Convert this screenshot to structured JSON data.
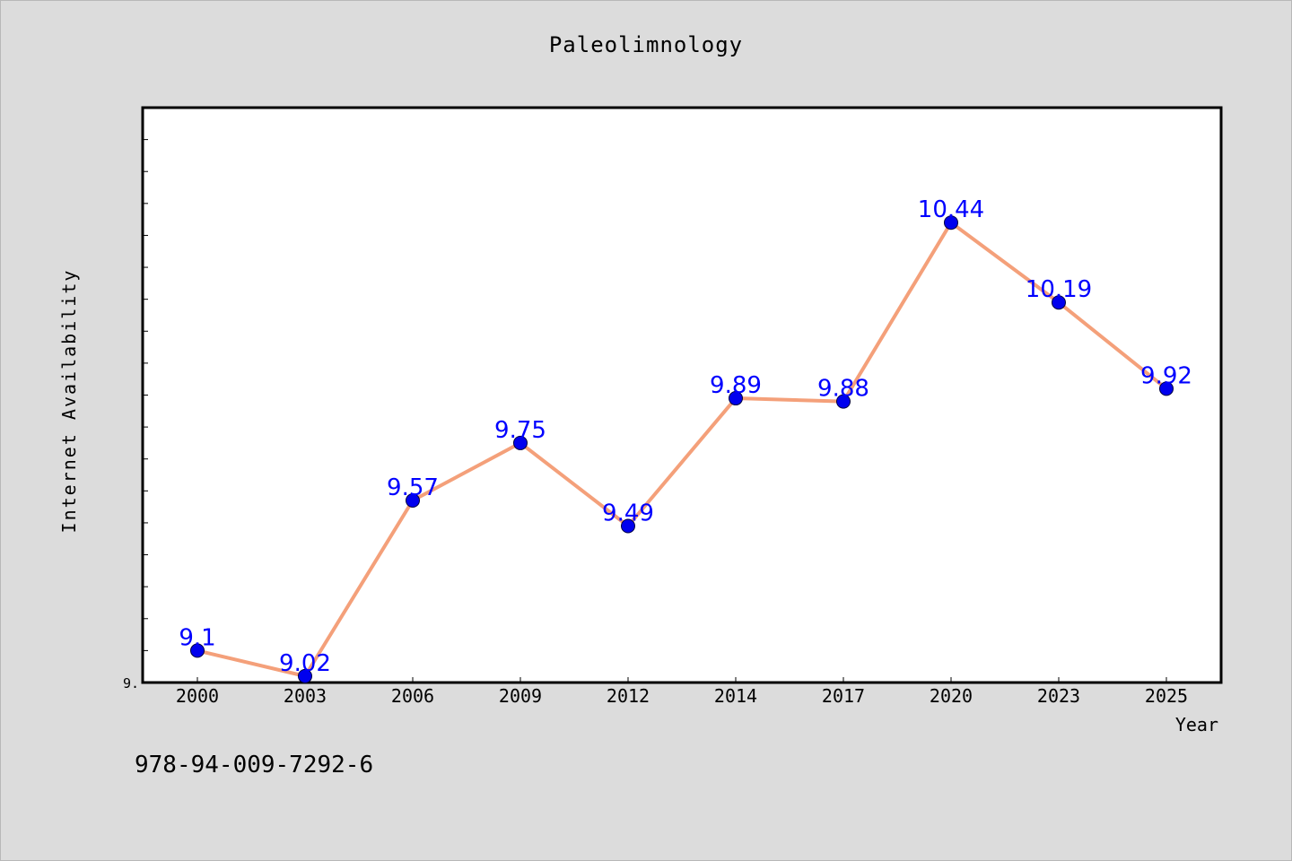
{
  "chart_data": {
    "type": "line",
    "title": "Paleolimnology",
    "xlabel": "Year",
    "ylabel": "Internet Availability",
    "categories": [
      "2000",
      "2003",
      "2006",
      "2009",
      "2012",
      "2014",
      "2017",
      "2020",
      "2023",
      "2025"
    ],
    "values": [
      9.1,
      9.02,
      9.57,
      9.75,
      9.49,
      9.89,
      9.88,
      10.44,
      10.19,
      9.92
    ],
    "data_labels": [
      "9.1",
      "9.02",
      "9.57",
      "9.75",
      "9.49",
      "9.89",
      "9.88",
      "10.44",
      "10.19",
      "9.92"
    ],
    "ytick_label": "9.",
    "ylim": [
      9.0,
      10.8
    ],
    "grid": false,
    "line_color": "#f4a07a",
    "marker_color": "#0000ee",
    "label_color": "#0000ff"
  },
  "footer": {
    "code": "978-94-009-7292-6"
  }
}
